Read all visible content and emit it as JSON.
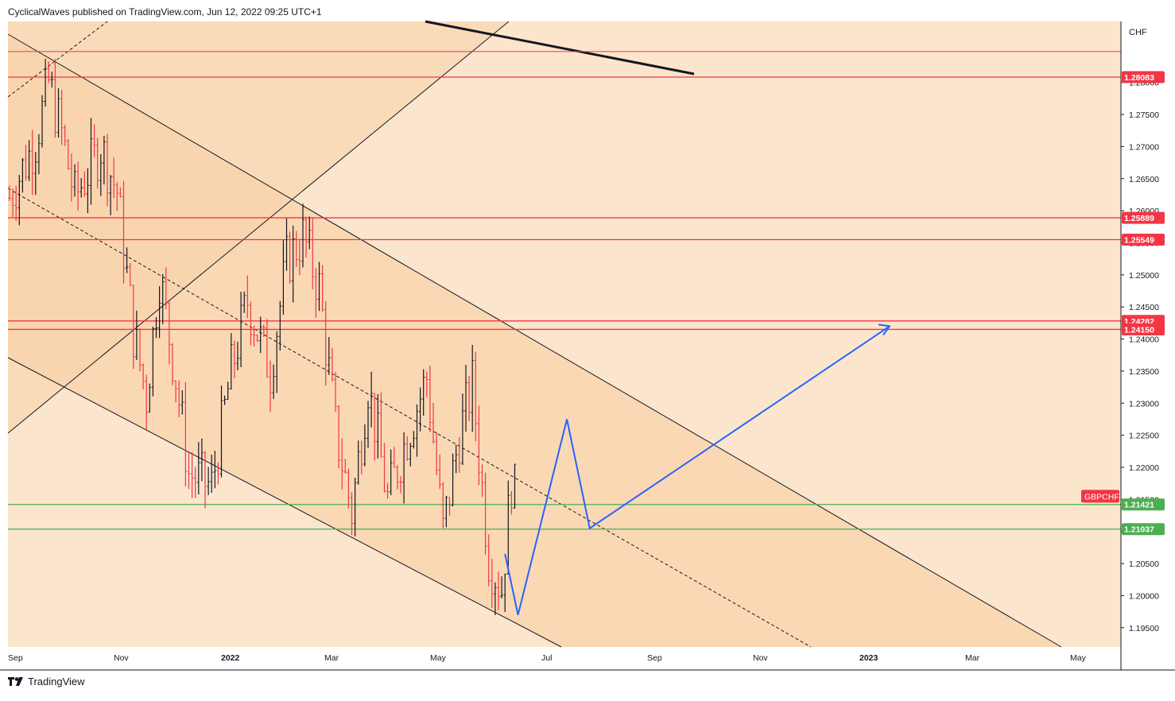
{
  "header": {
    "publisher_line": "CyclicalWaves published on TradingView.com, Jun 12, 2022 09:25 UTC+1"
  },
  "footer": {
    "brand": "TradingView"
  },
  "colors": {
    "background": "#fbe5cd",
    "channel_fill": "#f9d3ab",
    "resistance": "#f23645",
    "support": "#4caf50",
    "projection": "#2962ff",
    "bull_bar": "#131722",
    "bear_bar": "#f23645",
    "axis_text": "#131722"
  },
  "chart_data": {
    "type": "ohlc-bar",
    "symbol": "GBPCHF",
    "currency": "CHF",
    "y_axis": {
      "range": [
        1.192,
        1.2895
      ],
      "ticks": [
        "1.19500",
        "1.20000",
        "1.20500",
        "1.21000",
        "1.21500",
        "1.22000",
        "1.22500",
        "1.23000",
        "1.23500",
        "1.24000",
        "1.24500",
        "1.25000",
        "1.25500",
        "1.26000",
        "1.26500",
        "1.27000",
        "1.27500",
        "1.28000"
      ]
    },
    "x_axis": {
      "ticks": [
        {
          "label": "Sep",
          "bold": false
        },
        {
          "label": "Nov",
          "bold": false
        },
        {
          "label": "2022",
          "bold": true
        },
        {
          "label": "Mar",
          "bold": false
        },
        {
          "label": "May",
          "bold": false
        },
        {
          "label": "Jul",
          "bold": false
        },
        {
          "label": "Sep",
          "bold": false
        },
        {
          "label": "Nov",
          "bold": false
        },
        {
          "label": "2023",
          "bold": true
        },
        {
          "label": "Mar",
          "bold": false
        },
        {
          "label": "May",
          "bold": false
        }
      ]
    },
    "resistance_levels": [
      {
        "value": 1.28083,
        "label": "1.28083"
      },
      {
        "value": 1.25889,
        "label": "1.25889"
      },
      {
        "value": 1.25549,
        "label": "1.25549"
      },
      {
        "value": 1.24282,
        "label": "1.24282"
      },
      {
        "value": 1.2415,
        "label": "1.24150"
      }
    ],
    "extra_line_value": 1.2848,
    "support_levels": [
      {
        "value": 1.21421,
        "label": "1.21421"
      },
      {
        "value": 1.21037,
        "label": "1.21037"
      }
    ],
    "last_price": {
      "value": 1.2155,
      "label": "GBPCHF"
    },
    "projection_path": [
      {
        "bar": 152,
        "price": 1.2065
      },
      {
        "bar": 156,
        "price": 1.197
      },
      {
        "bar": 171,
        "price": 1.2275
      },
      {
        "bar": 178,
        "price": 1.2105
      },
      {
        "bar": 270,
        "price": 1.242
      }
    ],
    "bars": {
      "count": 156,
      "start_price": 1.262,
      "end_price": 1.216,
      "series_note": "daily OHLC bars, Aug 2021 - Jun 2022",
      "anchor_closes": [
        [
          0,
          1.262
        ],
        [
          8,
          1.271
        ],
        [
          12,
          1.28
        ],
        [
          16,
          1.272
        ],
        [
          20,
          1.262
        ],
        [
          28,
          1.27
        ],
        [
          33,
          1.263
        ],
        [
          38,
          1.241
        ],
        [
          42,
          1.231
        ],
        [
          46,
          1.25
        ],
        [
          51,
          1.234
        ],
        [
          55,
          1.219
        ],
        [
          62,
          1.217
        ],
        [
          68,
          1.235
        ],
        [
          73,
          1.246
        ],
        [
          80,
          1.235
        ],
        [
          85,
          1.252
        ],
        [
          90,
          1.256
        ],
        [
          95,
          1.248
        ],
        [
          100,
          1.226
        ],
        [
          105,
          1.213
        ],
        [
          110,
          1.233
        ],
        [
          116,
          1.215
        ],
        [
          122,
          1.225
        ],
        [
          128,
          1.234
        ],
        [
          133,
          1.21
        ],
        [
          138,
          1.225
        ],
        [
          142,
          1.233
        ],
        [
          147,
          1.206
        ],
        [
          151,
          1.201
        ],
        [
          154,
          1.218
        ],
        [
          155,
          1.216
        ]
      ]
    }
  }
}
